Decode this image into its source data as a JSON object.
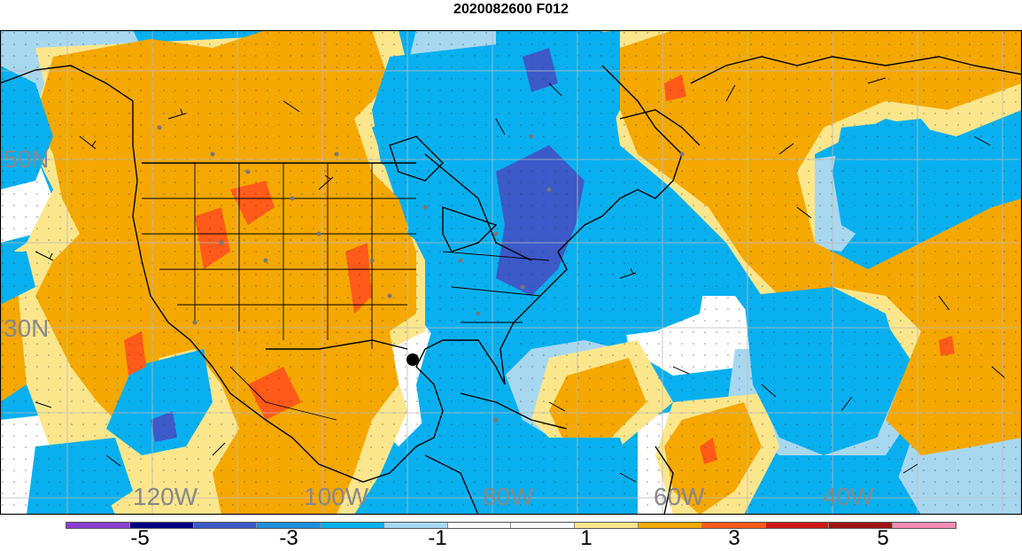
{
  "title": "2020082600 F012",
  "lon_labels": [
    "120W",
    "100W",
    "80W",
    "60W",
    "40W"
  ],
  "lat_labels": [
    "50N",
    "30N"
  ],
  "colorbar": {
    "colors": [
      "#8b3fd1",
      "#000080",
      "#3c5ac8",
      "#1f8fe0",
      "#08b0f0",
      "#a8d8f0",
      "#ffffff",
      "#ffffff",
      "#fce68c",
      "#f5a800",
      "#ff5a1a",
      "#d01818",
      "#9e1414",
      "#f58cb4"
    ],
    "tick_labels": [
      "-5",
      "-3",
      "-1",
      "1",
      "3",
      "5"
    ]
  },
  "legend_colors": {
    "cold_strong": "#3c5ac8",
    "cold": "#08b0f0",
    "cool": "#a8d8f0",
    "neutral": "#ffffff",
    "warm_light": "#fce68c",
    "warm": "#f5a800",
    "hot": "#ff5a1a",
    "hotter": "#d01818"
  }
}
